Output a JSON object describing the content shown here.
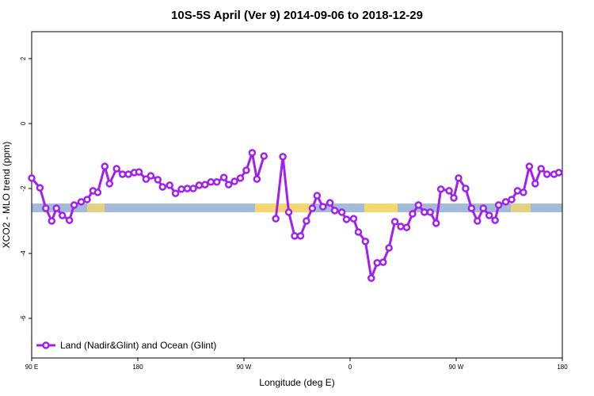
{
  "chart_data": {
    "type": "line",
    "title": "10S-5S April (Ver 9)   2014-09-06 to 2018-12-29",
    "x_label": "Longitude (deg E)",
    "y_label": "XCO2 - MLO trend (ppm)",
    "xlim": [
      90,
      540
    ],
    "xticks": [
      {
        "value": 90,
        "label": "90 E"
      },
      180,
      {
        "value": 270,
        "label": "90 W"
      },
      {
        "value": 360,
        "label": "0"
      },
      {
        "value": 450,
        "label": "90 W"
      },
      {
        "value": 540,
        "label": "180"
      }
    ],
    "ylim": [
      -7.22,
      2.83
    ],
    "yticks": [
      -6,
      -4,
      -2,
      0,
      2
    ],
    "legend": "bottom-left",
    "x": [
      90,
      97,
      102,
      107,
      111,
      116,
      122,
      126,
      132,
      137,
      142,
      146,
      152,
      156,
      162,
      167,
      172,
      177,
      181,
      187,
      191,
      197,
      201,
      207,
      212,
      217,
      222,
      227,
      232,
      237,
      242,
      247,
      253,
      257,
      262,
      267,
      272,
      277,
      281,
      287,
      292,
      297,
      303,
      308,
      313,
      318,
      323,
      328,
      332,
      337,
      343,
      347,
      353,
      357,
      363,
      367,
      373,
      378,
      383,
      388,
      393,
      398,
      403,
      408,
      413,
      418,
      423,
      428,
      433,
      437,
      444,
      448,
      452,
      458,
      463,
      468,
      473,
      478,
      483,
      486,
      492,
      497,
      502,
      507,
      512,
      517,
      522,
      527,
      533,
      537
    ],
    "series": [
      {
        "name": "Land (Nadir&Glint) and Ocean (Glint)",
        "color": "#a020f0",
        "values": [
          -1.68,
          -1.98,
          -2.61,
          -3.0,
          -2.61,
          -2.83,
          -2.98,
          -2.51,
          -2.41,
          -2.34,
          -2.07,
          -2.12,
          -1.32,
          -1.85,
          -1.39,
          -1.56,
          -1.56,
          -1.51,
          -1.49,
          -1.71,
          -1.61,
          -1.73,
          -1.95,
          -1.9,
          -2.15,
          -2.02,
          -2.0,
          -2.0,
          -1.9,
          -1.88,
          -1.8,
          -1.8,
          -1.66,
          -1.88,
          -1.78,
          -1.68,
          -1.44,
          -0.9,
          -1.71,
          -1.0,
          null,
          -2.93,
          -1.02,
          -2.73,
          -3.46,
          -3.46,
          -3.0,
          -2.61,
          -2.22,
          -2.56,
          -2.44,
          -2.68,
          -2.73,
          -2.95,
          -2.93,
          -3.34,
          -3.63,
          -4.76,
          -4.29,
          -4.27,
          -3.83,
          -3.02,
          -3.17,
          -3.2,
          -2.78,
          -2.51,
          -2.73,
          -2.73,
          -3.07,
          -2.02,
          -2.07,
          -2.29,
          -1.68,
          -2.0,
          -2.61,
          -3.0,
          -2.61,
          -2.83,
          -2.98,
          -2.51,
          -2.41,
          -2.34,
          -2.07,
          -2.12,
          -1.32,
          -1.85,
          -1.39,
          -1.56,
          -1.56,
          -1.51
        ]
      }
    ]
  }
}
